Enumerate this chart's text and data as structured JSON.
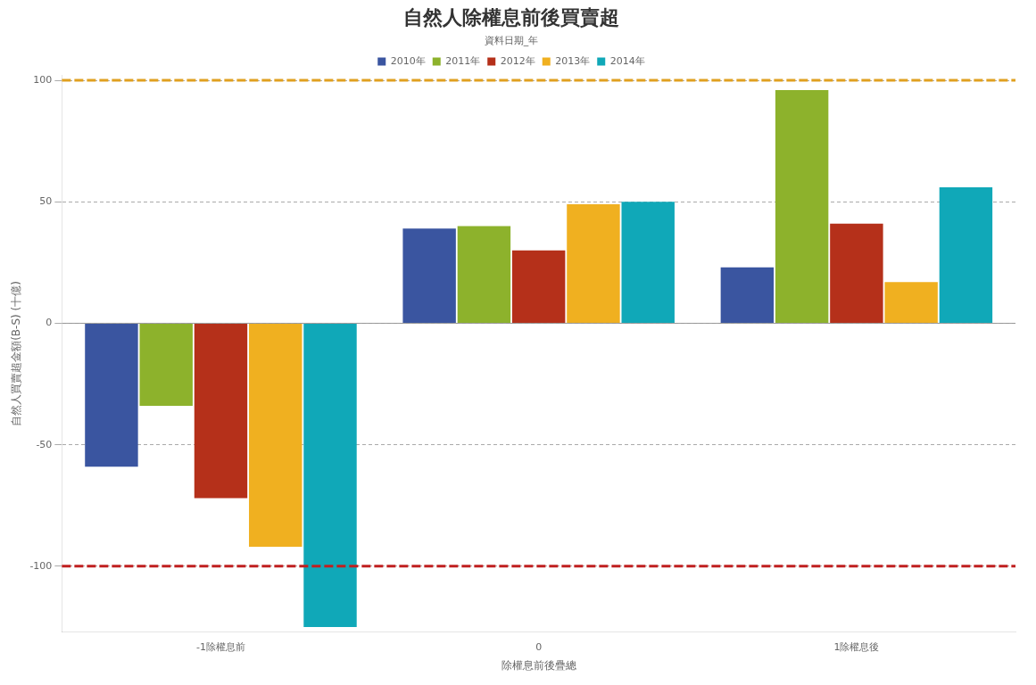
{
  "chart_data": {
    "type": "bar",
    "title": "自然人除權息前後買賣超",
    "xlabel": "除權息前後疊總",
    "ylabel": "自然人買賣超金額(B-S) (十億)",
    "legend_title": "資料日期_年",
    "categories": [
      "-1除權息前",
      "0",
      "1除權息後"
    ],
    "series": [
      {
        "name": "2010年",
        "color": "#3a55a0",
        "values": [
          -59,
          39,
          23
        ]
      },
      {
        "name": "2011年",
        "color": "#8db22c",
        "values": [
          -34,
          40,
          96
        ]
      },
      {
        "name": "2012年",
        "color": "#b5301a",
        "values": [
          -72,
          30,
          41
        ]
      },
      {
        "name": "2013年",
        "color": "#f0b020",
        "values": [
          -92,
          49,
          17
        ]
      },
      {
        "name": "2014年",
        "color": "#10a8b8",
        "values": [
          -125,
          50,
          56
        ]
      }
    ],
    "ylim": [
      -127,
      102
    ],
    "yticks": [
      -100,
      -50,
      0,
      50,
      100
    ],
    "grid": "y",
    "legend": "top",
    "ref_lines": [
      {
        "axis": "y",
        "value": 0,
        "label": null,
        "color": "#999999",
        "line_style": "solid"
      },
      {
        "axis": "y",
        "value": 100,
        "label": null,
        "color": "#e0a020",
        "line_style": "dashed"
      },
      {
        "axis": "y",
        "value": -100,
        "label": null,
        "color": "#c02020",
        "line_style": "dashed"
      }
    ]
  }
}
